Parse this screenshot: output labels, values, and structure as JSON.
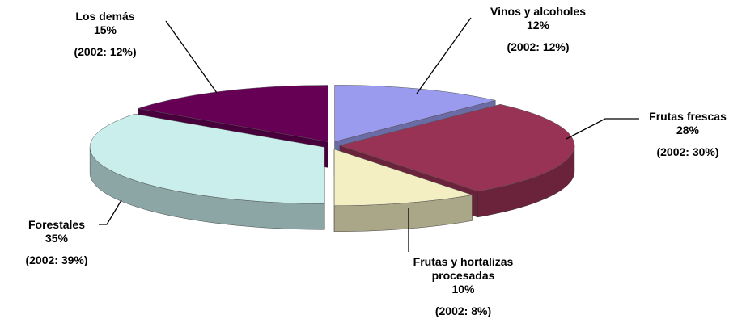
{
  "chart_data": {
    "type": "pie",
    "categories": [
      "Vinos y alcoholes",
      "Frutas frescas",
      "Frutas y hortalizas procesadas",
      "Forestales",
      "Los demás"
    ],
    "values": [
      12,
      28,
      10,
      35,
      15
    ],
    "value_labels": [
      "12%",
      "28%",
      "10%",
      "35%",
      "15%"
    ],
    "annotations": [
      "(2002: 12%)",
      "(2002: 30%)",
      "(2002: 8%)",
      "(2002: 39%)",
      "(2002: 12%)"
    ],
    "colors": [
      "#9a9aee",
      "#993355",
      "#f3efc2",
      "#c9eeec",
      "#660055"
    ]
  }
}
